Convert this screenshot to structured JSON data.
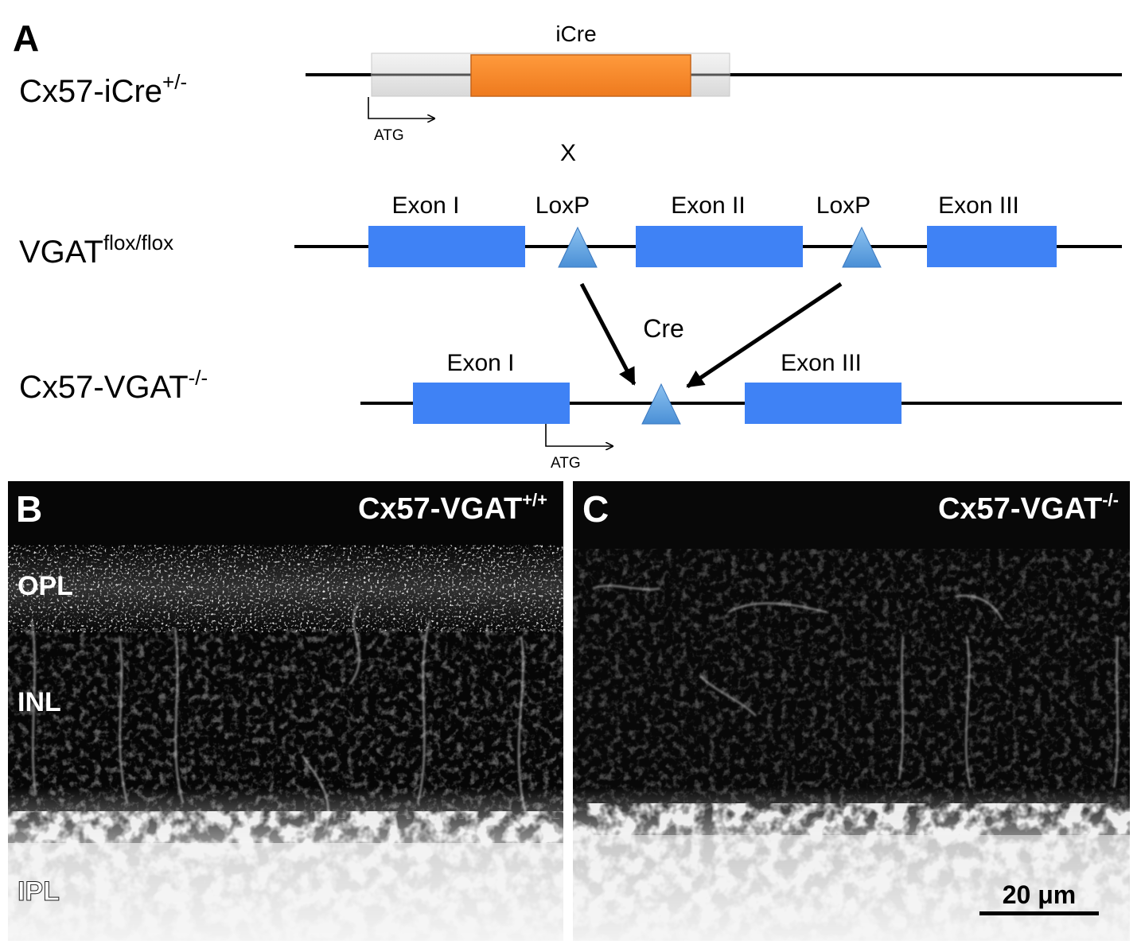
{
  "panelA": {
    "label": "A",
    "rows": {
      "cre": {
        "name": "Cx57-iCre",
        "sup": "+/-"
      },
      "flox": {
        "name": "VGAT",
        "sup": "flox/flox"
      },
      "ko": {
        "name": "Cx57-VGAT",
        "sup": "-/-"
      }
    },
    "icre_label": "iCre",
    "atg_label": "ATG",
    "cross_symbol": "X",
    "cre_label": "Cre",
    "flox_exons": [
      "Exon I",
      "Exon II",
      "Exon III"
    ],
    "loxp_label": "LoxP",
    "ko_exons": [
      "Exon I",
      "Exon III"
    ],
    "colors": {
      "icre": "#f5862a",
      "exon": "#3f82f5",
      "loxp": "#5b9fdc",
      "backbone": "#000000"
    }
  },
  "panelB": {
    "label": "B",
    "title": {
      "name": "Cx57-VGAT",
      "sup": "+/+"
    },
    "layers": [
      "OPL",
      "INL",
      "IPL"
    ]
  },
  "panelC": {
    "label": "C",
    "title": {
      "name": "Cx57-VGAT",
      "sup": "-/-"
    },
    "scalebar_label": "20 μm"
  }
}
